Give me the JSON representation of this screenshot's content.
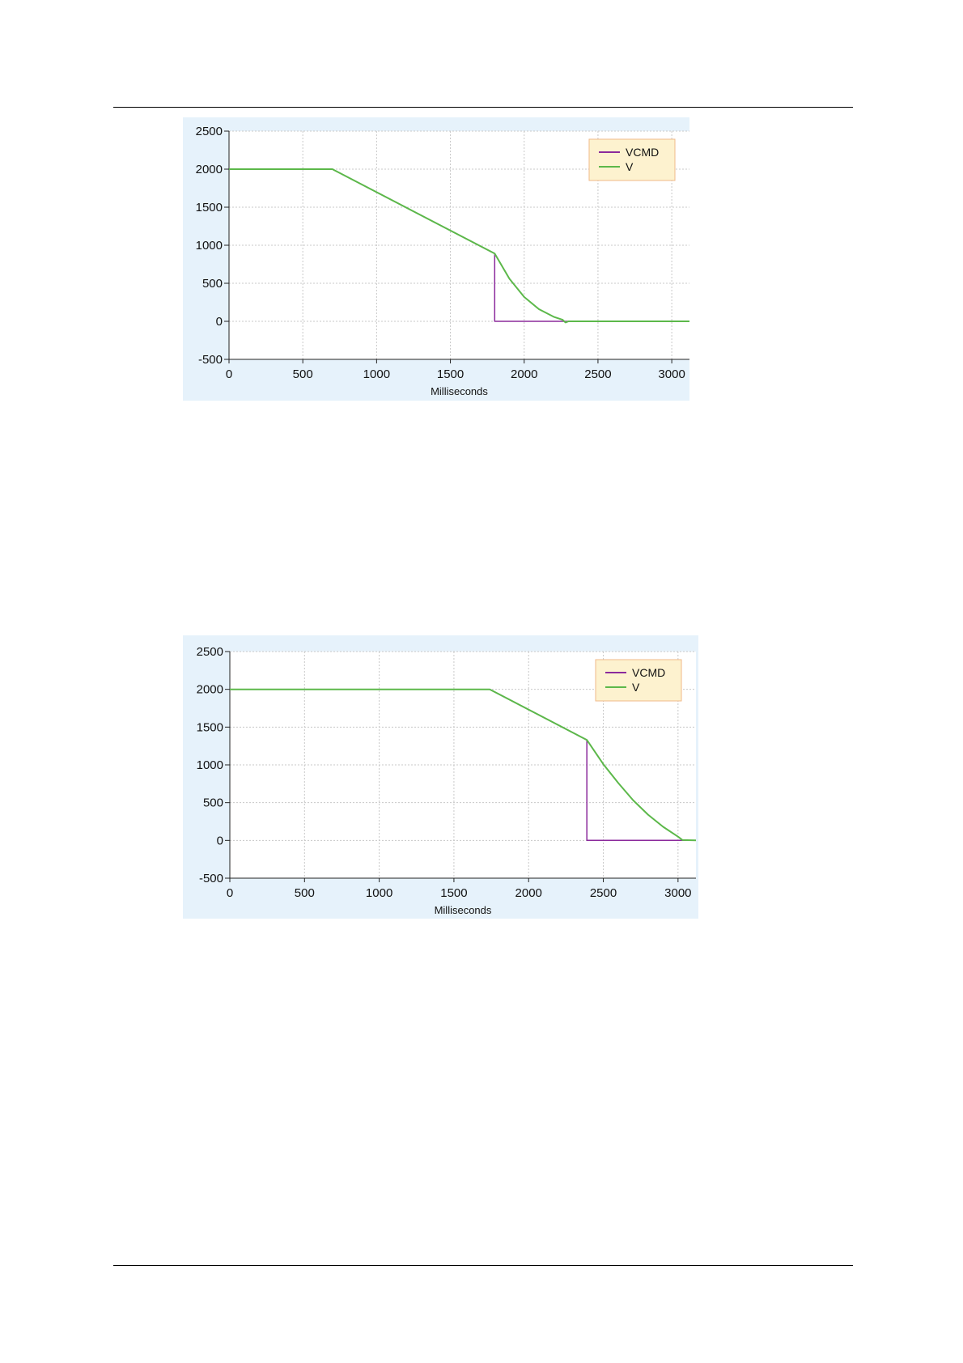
{
  "chart_data": [
    {
      "type": "line",
      "xlabel": "Milliseconds",
      "ylabel": "",
      "xlim": [
        0,
        3120
      ],
      "ylim": [
        -500,
        2500
      ],
      "xticks": [
        0,
        500,
        1000,
        1500,
        2000,
        2500,
        3000
      ],
      "yticks": [
        -500,
        0,
        500,
        1000,
        1500,
        2000,
        2500
      ],
      "grid": true,
      "legend_position": "top-right",
      "series": [
        {
          "name": "VCMD",
          "color": "#8b2a9c",
          "x": [
            0,
            700,
            1800,
            1800,
            3120
          ],
          "y": [
            2000,
            2000,
            890,
            0,
            0
          ]
        },
        {
          "name": "V",
          "color": "#5cb84a",
          "x": [
            0,
            700,
            1800,
            1900,
            2000,
            2100,
            2200,
            2260,
            2280,
            2300,
            3120
          ],
          "y": [
            2000,
            2000,
            890,
            560,
            320,
            160,
            60,
            20,
            -15,
            0,
            0
          ]
        }
      ]
    },
    {
      "type": "line",
      "xlabel": "Milliseconds",
      "ylabel": "",
      "xlim": [
        0,
        3120
      ],
      "ylim": [
        -500,
        2500
      ],
      "xticks": [
        0,
        500,
        1000,
        1500,
        2000,
        2500,
        3000
      ],
      "yticks": [
        -500,
        0,
        500,
        1000,
        1500,
        2000,
        2500
      ],
      "grid": true,
      "legend_position": "top-right",
      "series": [
        {
          "name": "VCMD",
          "color": "#8b2a9c",
          "x": [
            0,
            1740,
            2390,
            2390,
            3120
          ],
          "y": [
            2000,
            2000,
            1330,
            0,
            0
          ]
        },
        {
          "name": "V",
          "color": "#5cb84a",
          "x": [
            0,
            1740,
            2390,
            2500,
            2600,
            2700,
            2800,
            2900,
            3000,
            3030,
            3120
          ],
          "y": [
            2000,
            2000,
            1330,
            1010,
            760,
            530,
            340,
            180,
            50,
            5,
            0
          ]
        }
      ]
    }
  ]
}
